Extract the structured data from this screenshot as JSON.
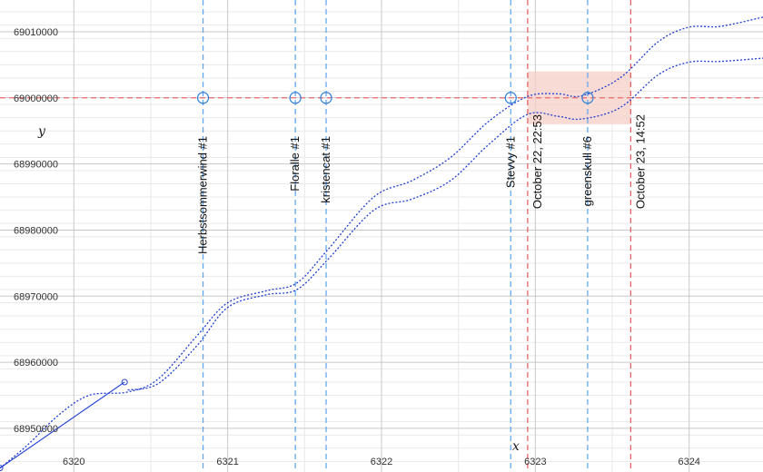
{
  "chart_data": {
    "type": "line",
    "xlabel": "x",
    "ylabel": "y",
    "xlim": [
      6319.52,
      6324.48
    ],
    "ylim": [
      68943400,
      69014800
    ],
    "x_ticks": [
      "6320",
      "6321",
      "6322",
      "6323",
      "6324"
    ],
    "x_tick_values": [
      6320,
      6321,
      6322,
      6323,
      6324
    ],
    "y_ticks": [
      "68950000",
      "68960000",
      "68970000",
      "68980000",
      "68990000",
      "69000000",
      "69010000"
    ],
    "y_tick_values": [
      68950000,
      68960000,
      68970000,
      68980000,
      68990000,
      69000000,
      69010000
    ],
    "grid": true,
    "band_upper": [
      [
        6319.52,
        68944000
      ],
      [
        6319.7,
        68947500
      ],
      [
        6319.9,
        68952000
      ],
      [
        6320.1,
        68955000
      ],
      [
        6320.35,
        68955500
      ],
      [
        6320.55,
        68957500
      ],
      [
        6320.8,
        68964000
      ],
      [
        6321.0,
        68969000
      ],
      [
        6321.25,
        68970800
      ],
      [
        6321.45,
        68972000
      ],
      [
        6321.65,
        68977000
      ],
      [
        6321.95,
        68985000
      ],
      [
        6322.2,
        68987500
      ],
      [
        6322.45,
        68991000
      ],
      [
        6322.7,
        68996500
      ],
      [
        6322.95,
        69000200
      ],
      [
        6323.15,
        69000600
      ],
      [
        6323.3,
        69000300
      ],
      [
        6323.55,
        69003000
      ],
      [
        6323.8,
        69008500
      ],
      [
        6324.0,
        69010700
      ],
      [
        6324.2,
        69010800
      ],
      [
        6324.48,
        69012200
      ]
    ],
    "band_lower": [
      [
        6320.35,
        68955800
      ],
      [
        6320.55,
        68956800
      ],
      [
        6320.8,
        68962500
      ],
      [
        6321.0,
        68968300
      ],
      [
        6321.25,
        68970200
      ],
      [
        6321.45,
        68971000
      ],
      [
        6321.65,
        68975500
      ],
      [
        6321.95,
        68983000
      ],
      [
        6322.2,
        68984700
      ],
      [
        6322.45,
        68987500
      ],
      [
        6322.7,
        68993000
      ],
      [
        6322.95,
        68997500
      ],
      [
        6323.15,
        68997200
      ],
      [
        6323.3,
        68996800
      ],
      [
        6323.55,
        68998500
      ],
      [
        6323.8,
        69003500
      ],
      [
        6324.0,
        69005400
      ],
      [
        6324.2,
        69005500
      ],
      [
        6324.48,
        69006000
      ]
    ],
    "trend_line": [
      [
        6319.52,
        68944000
      ],
      [
        6320.33,
        68957000
      ]
    ],
    "endpoint_markers": [
      [
        6319.52,
        68944000
      ],
      [
        6320.33,
        68957000
      ]
    ],
    "reference_y": 69000000,
    "events": [
      {
        "label": "Herbstsommerwind #1",
        "x": 6320.84
      },
      {
        "label": "Floralle #1",
        "x": 6321.44
      },
      {
        "label": "kristencat #1",
        "x": 6321.64
      },
      {
        "label": "Stevvy #1",
        "x": 6322.84
      },
      {
        "label": "greenskull #6",
        "x": 6323.34
      }
    ],
    "date_markers": [
      {
        "label": "October 22, 22:53",
        "x": 6322.95
      },
      {
        "label": "October 23, 14:52",
        "x": 6323.62
      }
    ],
    "highlight_region": {
      "x": [
        6322.95,
        6323.62
      ],
      "y": [
        68996000,
        69004000
      ]
    },
    "colors": {
      "series": "#1f3fd0",
      "event_line": "#5aa2ee",
      "reference_line": "#ee6b6b",
      "date_line": "#e05a5a",
      "highlight": "#f7cfc8",
      "grid_major": "#c8c8c8",
      "grid_minor": "#e9e9e9"
    }
  }
}
